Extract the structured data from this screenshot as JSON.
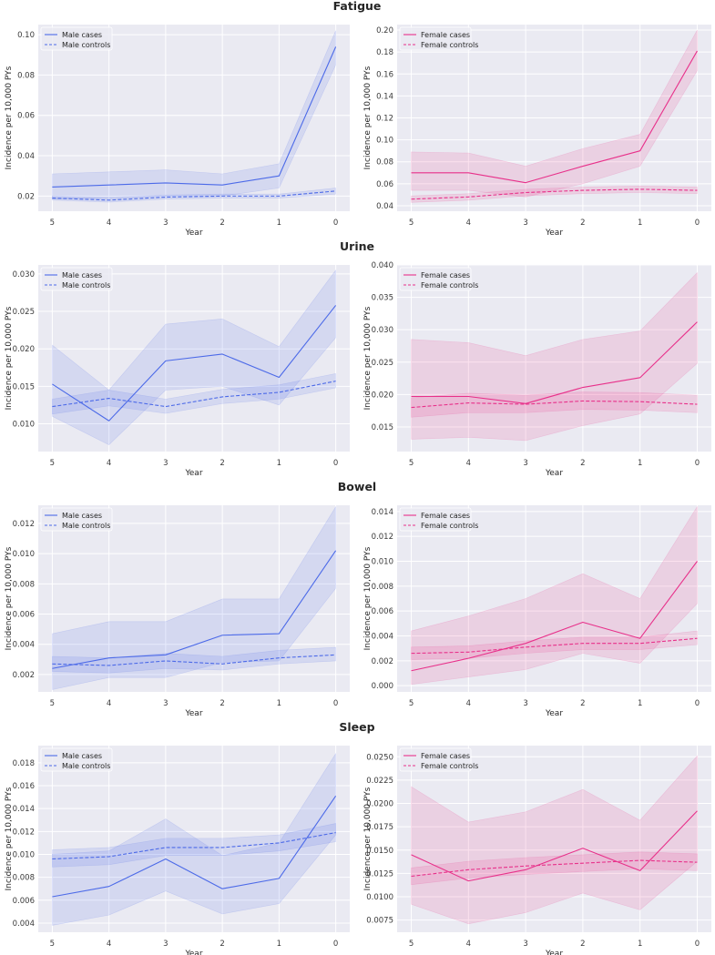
{
  "colors": {
    "male": "#4c6ae8",
    "female": "#e8308a",
    "panel_bg": "#eaeaf2",
    "grid": "#ffffff"
  },
  "chart_data": [
    {
      "type": "line",
      "title": "Fatigue",
      "panels": [
        {
          "sex": "male",
          "categories": [
            "5",
            "4",
            "3",
            "2",
            "1",
            "0"
          ],
          "xlabel": "Year",
          "ylabel": "Incidence per 10,000 PYs",
          "ylim": [
            0.0125,
            0.105
          ],
          "yticks": [
            0.02,
            0.04,
            0.06,
            0.08,
            0.1
          ],
          "yticklabels": [
            "0.02",
            "0.04",
            "0.06",
            "0.08",
            "0.10"
          ],
          "series": [
            {
              "name": "Male cases",
              "dash": false,
              "values": [
                0.0245,
                0.0255,
                0.0265,
                0.0255,
                0.03,
                0.094
              ],
              "lower": [
                0.0185,
                0.019,
                0.02,
                0.02,
                0.024,
                0.085
              ],
              "upper": [
                0.031,
                0.032,
                0.033,
                0.031,
                0.036,
                0.102
              ]
            },
            {
              "name": "Male controls",
              "dash": true,
              "values": [
                0.019,
                0.018,
                0.0195,
                0.02,
                0.02,
                0.0225
              ],
              "lower": [
                0.018,
                0.017,
                0.0185,
                0.019,
                0.019,
                0.021
              ],
              "upper": [
                0.02,
                0.019,
                0.0205,
                0.021,
                0.021,
                0.024
              ]
            }
          ]
        },
        {
          "sex": "female",
          "categories": [
            "5",
            "4",
            "3",
            "2",
            "1",
            "0"
          ],
          "xlabel": "Year",
          "ylabel": "Incidence per 10,000 PYs",
          "ylim": [
            0.035,
            0.205
          ],
          "yticks": [
            0.04,
            0.06,
            0.08,
            0.1,
            0.12,
            0.14,
            0.16,
            0.18,
            0.2
          ],
          "yticklabels": [
            "0.04",
            "0.06",
            "0.08",
            "0.10",
            "0.12",
            "0.14",
            "0.16",
            "0.18",
            "0.20"
          ],
          "series": [
            {
              "name": "Female cases",
              "dash": false,
              "values": [
                0.07,
                0.07,
                0.061,
                0.076,
                0.09,
                0.181
              ],
              "lower": [
                0.054,
                0.054,
                0.048,
                0.06,
                0.076,
                0.163
              ],
              "upper": [
                0.089,
                0.088,
                0.076,
                0.092,
                0.105,
                0.2
              ]
            },
            {
              "name": "Female controls",
              "dash": true,
              "values": [
                0.046,
                0.048,
                0.052,
                0.054,
                0.055,
                0.054
              ],
              "lower": [
                0.043,
                0.045,
                0.049,
                0.051,
                0.052,
                0.051
              ],
              "upper": [
                0.049,
                0.051,
                0.055,
                0.057,
                0.058,
                0.057
              ]
            }
          ]
        }
      ]
    },
    {
      "type": "line",
      "title": "Urine",
      "panels": [
        {
          "sex": "male",
          "categories": [
            "5",
            "4",
            "3",
            "2",
            "1",
            "0"
          ],
          "xlabel": "Year",
          "ylabel": "Incidence per 10,000 PYs",
          "ylim": [
            0.0063,
            0.0312
          ],
          "yticks": [
            0.01,
            0.015,
            0.02,
            0.025,
            0.03
          ],
          "yticklabels": [
            "0.010",
            "0.015",
            "0.020",
            "0.025",
            "0.030"
          ],
          "series": [
            {
              "name": "Male cases",
              "dash": false,
              "values": [
                0.0153,
                0.0104,
                0.0184,
                0.0193,
                0.0162,
                0.0258
              ],
              "lower": [
                0.011,
                0.0072,
                0.0145,
                0.015,
                0.0125,
                0.0215
              ],
              "upper": [
                0.0205,
                0.0145,
                0.0233,
                0.024,
                0.0203,
                0.0305
              ]
            },
            {
              "name": "Male controls",
              "dash": true,
              "values": [
                0.0123,
                0.0134,
                0.0123,
                0.0136,
                0.0142,
                0.0157
              ],
              "lower": [
                0.0113,
                0.0124,
                0.0114,
                0.0127,
                0.0133,
                0.0148
              ],
              "upper": [
                0.0133,
                0.0145,
                0.0133,
                0.0146,
                0.0152,
                0.0167
              ]
            }
          ]
        },
        {
          "sex": "female",
          "categories": [
            "5",
            "4",
            "3",
            "2",
            "1",
            "0"
          ],
          "xlabel": "Year",
          "ylabel": "Incidence per 10,000 PYs",
          "ylim": [
            0.0112,
            0.04
          ],
          "yticks": [
            0.015,
            0.02,
            0.025,
            0.03,
            0.035,
            0.04
          ],
          "yticklabels": [
            "0.015",
            "0.020",
            "0.025",
            "0.030",
            "0.035",
            "0.040"
          ],
          "series": [
            {
              "name": "Female cases",
              "dash": false,
              "values": [
                0.0197,
                0.0197,
                0.0186,
                0.0211,
                0.0226,
                0.0312
              ],
              "lower": [
                0.0131,
                0.0134,
                0.0129,
                0.0152,
                0.017,
                0.0248
              ],
              "upper": [
                0.0285,
                0.028,
                0.026,
                0.0285,
                0.0298,
                0.0388
              ]
            },
            {
              "name": "Female controls",
              "dash": true,
              "values": [
                0.018,
                0.0187,
                0.0185,
                0.019,
                0.0189,
                0.0185
              ],
              "lower": [
                0.0165,
                0.0172,
                0.0172,
                0.0177,
                0.0176,
                0.0172
              ],
              "upper": [
                0.0195,
                0.0202,
                0.0199,
                0.0204,
                0.0203,
                0.0199
              ]
            }
          ]
        }
      ]
    },
    {
      "type": "line",
      "title": "Bowel",
      "panels": [
        {
          "sex": "male",
          "categories": [
            "5",
            "4",
            "3",
            "2",
            "1",
            "0"
          ],
          "xlabel": "Year",
          "ylabel": "Incidence per 10,000 PYs",
          "ylim": [
            0.00085,
            0.0132
          ],
          "yticks": [
            0.002,
            0.004,
            0.006,
            0.008,
            0.01,
            0.012
          ],
          "yticklabels": [
            "0.002",
            "0.004",
            "0.006",
            "0.008",
            "0.010",
            "0.012"
          ],
          "series": [
            {
              "name": "Male cases",
              "dash": false,
              "values": [
                0.0024,
                0.0031,
                0.0033,
                0.0046,
                0.0047,
                0.0102
              ],
              "lower": [
                0.001,
                0.0018,
                0.0018,
                0.0028,
                0.0029,
                0.0077
              ],
              "upper": [
                0.0047,
                0.0055,
                0.0055,
                0.007,
                0.007,
                0.0131
              ]
            },
            {
              "name": "Male controls",
              "dash": true,
              "values": [
                0.0027,
                0.0026,
                0.0029,
                0.0027,
                0.0031,
                0.0033
              ],
              "lower": [
                0.0022,
                0.0021,
                0.0024,
                0.0023,
                0.0027,
                0.0029
              ],
              "upper": [
                0.0032,
                0.0031,
                0.0034,
                0.0032,
                0.0036,
                0.0038
              ]
            }
          ]
        },
        {
          "sex": "female",
          "categories": [
            "5",
            "4",
            "3",
            "2",
            "1",
            "0"
          ],
          "xlabel": "Year",
          "ylabel": "Incidence per 10,000 PYs",
          "ylim": [
            -0.0005,
            0.0145
          ],
          "yticks": [
            0.0,
            0.002,
            0.004,
            0.006,
            0.008,
            0.01,
            0.012,
            0.014
          ],
          "yticklabels": [
            "0.000",
            "0.002",
            "0.004",
            "0.006",
            "0.008",
            "0.010",
            "0.012",
            "0.014"
          ],
          "series": [
            {
              "name": "Female cases",
              "dash": false,
              "values": [
                0.0012,
                0.0022,
                0.0034,
                0.0051,
                0.0038,
                0.01
              ],
              "lower": [
                0.0001,
                0.0007,
                0.0013,
                0.0026,
                0.0018,
                0.0066
              ],
              "upper": [
                0.0044,
                0.0056,
                0.007,
                0.009,
                0.007,
                0.0144
              ]
            },
            {
              "name": "Female controls",
              "dash": true,
              "values": [
                0.0026,
                0.0027,
                0.0031,
                0.0034,
                0.0034,
                0.0038
              ],
              "lower": [
                0.0021,
                0.0022,
                0.0026,
                0.0029,
                0.0029,
                0.0033
              ],
              "upper": [
                0.0031,
                0.0032,
                0.0036,
                0.0039,
                0.0039,
                0.0044
              ]
            }
          ]
        }
      ]
    },
    {
      "type": "line",
      "title": "Sleep",
      "panels": [
        {
          "sex": "male",
          "categories": [
            "5",
            "4",
            "3",
            "2",
            "1",
            "0"
          ],
          "xlabel": "Year",
          "ylabel": "Incidence per 10,000 PYs",
          "ylim": [
            0.0032,
            0.0195
          ],
          "yticks": [
            0.004,
            0.006,
            0.008,
            0.01,
            0.012,
            0.014,
            0.016,
            0.018
          ],
          "yticklabels": [
            "0.004",
            "0.006",
            "0.008",
            "0.010",
            "0.012",
            "0.014",
            "0.016",
            "0.018"
          ],
          "series": [
            {
              "name": "Male cases",
              "dash": false,
              "values": [
                0.0063,
                0.0072,
                0.0096,
                0.007,
                0.0079,
                0.0151
              ],
              "lower": [
                0.0038,
                0.0047,
                0.0068,
                0.0048,
                0.0057,
                0.0117
              ],
              "upper": [
                0.01,
                0.0103,
                0.0131,
                0.0099,
                0.011,
                0.0188
              ]
            },
            {
              "name": "Male controls",
              "dash": true,
              "values": [
                0.0096,
                0.0098,
                0.0106,
                0.0106,
                0.011,
                0.0119
              ],
              "lower": [
                0.0089,
                0.0091,
                0.0099,
                0.0099,
                0.0103,
                0.0111
              ],
              "upper": [
                0.0104,
                0.0106,
                0.0114,
                0.0114,
                0.0117,
                0.0127
              ]
            }
          ]
        },
        {
          "sex": "female",
          "categories": [
            "5",
            "4",
            "3",
            "2",
            "1",
            "0"
          ],
          "xlabel": "Year",
          "ylabel": "Incidence per 10,000 PYs",
          "ylim": [
            0.0062,
            0.0262
          ],
          "yticks": [
            0.0075,
            0.01,
            0.0125,
            0.015,
            0.0175,
            0.02,
            0.0225,
            0.025
          ],
          "yticklabels": [
            "0.0075",
            "0.0100",
            "0.0125",
            "0.0150",
            "0.0175",
            "0.0200",
            "0.0225",
            "0.0250"
          ],
          "series": [
            {
              "name": "Female cases",
              "dash": false,
              "values": [
                0.0145,
                0.0117,
                0.0129,
                0.0152,
                0.0128,
                0.0192
              ],
              "lower": [
                0.0092,
                0.0071,
                0.0083,
                0.0104,
                0.0086,
                0.0138
              ],
              "upper": [
                0.0218,
                0.018,
                0.0191,
                0.0215,
                0.0182,
                0.0251
              ]
            },
            {
              "name": "Female controls",
              "dash": true,
              "values": [
                0.0122,
                0.0129,
                0.0133,
                0.0136,
                0.0139,
                0.0137
              ],
              "lower": [
                0.0113,
                0.012,
                0.0124,
                0.0127,
                0.013,
                0.0128
              ],
              "upper": [
                0.0131,
                0.0138,
                0.0142,
                0.0145,
                0.0148,
                0.0146
              ]
            }
          ]
        }
      ]
    }
  ]
}
